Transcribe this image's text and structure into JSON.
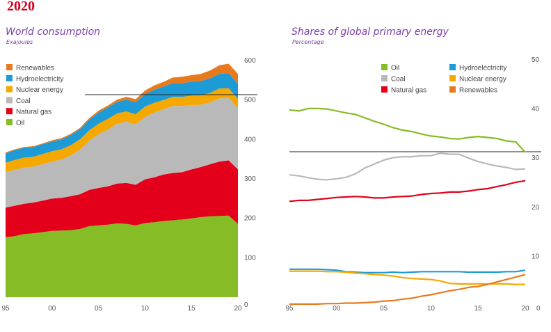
{
  "year_label": "2020",
  "colors": {
    "renewables": "#e87a1e",
    "hydro": "#1d9bd7",
    "nuclear": "#f5a800",
    "coal": "#b9b9b9",
    "gas": "#e4001b",
    "oil": "#86bc25"
  },
  "chart_data": [
    {
      "type": "area",
      "title": "World consumption",
      "subtitle": "Exajoules",
      "stacked": true,
      "ylim": [
        0,
        600
      ],
      "y_ticks": [
        "0",
        "100",
        "200",
        "300",
        "400",
        "500",
        "600"
      ],
      "x_tick_labels": [
        "95",
        "00",
        "05",
        "10",
        "15",
        "20"
      ],
      "x": [
        1995,
        1996,
        1997,
        1998,
        1999,
        2000,
        2001,
        2002,
        2003,
        2004,
        2005,
        2006,
        2007,
        2008,
        2009,
        2010,
        2011,
        2012,
        2013,
        2014,
        2015,
        2016,
        2017,
        2018,
        2019,
        2020
      ],
      "legend": [
        "Renewables",
        "Hydroelectricity",
        "Nuclear energy",
        "Coal",
        "Natural gas",
        "Oil"
      ],
      "series": [
        {
          "name": "Oil",
          "key": "oil",
          "values": [
            152,
            155,
            160,
            162,
            165,
            168,
            169,
            170,
            173,
            180,
            182,
            184,
            187,
            186,
            182,
            188,
            190,
            193,
            195,
            197,
            200,
            203,
            205,
            206,
            207,
            186
          ]
        },
        {
          "name": "Natural gas",
          "key": "gas",
          "values": [
            75,
            77,
            77,
            78,
            80,
            82,
            83,
            86,
            88,
            92,
            95,
            97,
            101,
            104,
            103,
            111,
            114,
            118,
            120,
            120,
            124,
            127,
            132,
            138,
            140,
            138
          ]
        },
        {
          "name": "Coal",
          "key": "coal",
          "values": [
            90,
            91,
            92,
            91,
            92,
            94,
            97,
            103,
            113,
            125,
            136,
            144,
            152,
            155,
            153,
            158,
            164,
            166,
            170,
            168,
            163,
            158,
            157,
            160,
            158,
            155
          ]
        },
        {
          "name": "Nuclear energy",
          "key": "nuclear",
          "values": [
            24,
            25,
            25,
            25,
            26,
            26,
            26,
            26,
            26,
            26,
            27,
            27,
            26,
            26,
            26,
            26,
            25,
            23,
            23,
            23,
            24,
            24,
            24,
            25,
            25,
            24
          ]
        },
        {
          "name": "Hydroelectricity",
          "key": "hydro",
          "values": [
            24,
            25,
            25,
            25,
            25,
            25,
            25,
            26,
            26,
            27,
            28,
            29,
            29,
            30,
            30,
            32,
            33,
            34,
            35,
            35,
            35,
            36,
            37,
            37,
            38,
            38
          ]
        },
        {
          "name": "Renewables",
          "key": "renewables",
          "values": [
            2,
            2,
            2,
            2,
            2,
            3,
            3,
            3,
            3,
            4,
            5,
            5,
            6,
            7,
            8,
            9,
            11,
            12,
            14,
            16,
            17,
            18,
            20,
            22,
            24,
            25
          ]
        }
      ]
    },
    {
      "type": "line",
      "title": "Shares of global primary energy",
      "subtitle": "Percentage",
      "ylim": [
        0,
        50
      ],
      "y_ticks": [
        "0",
        "10",
        "20",
        "30",
        "40",
        "50"
      ],
      "x_tick_labels": [
        "95",
        "00",
        "05",
        "10",
        "15",
        "20"
      ],
      "x": [
        1995,
        1996,
        1997,
        1998,
        1999,
        2000,
        2001,
        2002,
        2003,
        2004,
        2005,
        2006,
        2007,
        2008,
        2009,
        2010,
        2011,
        2012,
        2013,
        2014,
        2015,
        2016,
        2017,
        2018,
        2019,
        2020
      ],
      "legend": [
        "Oil",
        "Coal",
        "Natural gas",
        "Hydroelectricity",
        "Nuclear energy",
        "Renewables"
      ],
      "series": [
        {
          "name": "Oil",
          "key": "oil",
          "values": [
            39.8,
            39.6,
            40.1,
            40.1,
            40.0,
            39.6,
            39.2,
            38.9,
            38.2,
            37.5,
            36.9,
            36.2,
            35.7,
            35.4,
            34.9,
            34.5,
            34.3,
            34.0,
            33.9,
            34.2,
            34.4,
            34.2,
            34.0,
            33.5,
            33.3,
            31.2
          ]
        },
        {
          "name": "Coal",
          "key": "coal",
          "values": [
            26.6,
            26.4,
            26.0,
            25.7,
            25.6,
            25.8,
            26.1,
            26.8,
            28.0,
            28.8,
            29.6,
            30.1,
            30.3,
            30.3,
            30.5,
            30.5,
            31.0,
            30.8,
            30.8,
            30.0,
            29.3,
            28.8,
            28.4,
            28.1,
            27.7,
            27.8
          ]
        },
        {
          "name": "Natural gas",
          "key": "gas",
          "values": [
            21.2,
            21.4,
            21.4,
            21.6,
            21.8,
            22.0,
            22.1,
            22.2,
            22.1,
            21.9,
            21.9,
            22.1,
            22.2,
            22.3,
            22.6,
            22.8,
            22.9,
            23.1,
            23.1,
            23.3,
            23.6,
            23.8,
            24.2,
            24.6,
            25.1,
            25.4
          ]
        },
        {
          "name": "Hydroelectricity",
          "key": "hydro",
          "values": [
            7.4,
            7.4,
            7.4,
            7.4,
            7.3,
            7.2,
            6.9,
            6.8,
            6.7,
            6.7,
            6.7,
            6.8,
            6.7,
            6.8,
            6.9,
            6.9,
            6.9,
            6.9,
            6.9,
            6.8,
            6.8,
            6.8,
            6.8,
            6.9,
            6.9,
            7.2
          ]
        },
        {
          "name": "Nuclear energy",
          "key": "nuclear",
          "values": [
            7.0,
            7.0,
            7.0,
            7.0,
            6.9,
            6.9,
            6.8,
            6.6,
            6.5,
            6.3,
            6.2,
            6.0,
            5.7,
            5.5,
            5.4,
            5.3,
            5.0,
            4.5,
            4.4,
            4.4,
            4.4,
            4.4,
            4.4,
            4.4,
            4.3,
            4.3
          ]
        },
        {
          "name": "Renewables",
          "key": "renewables",
          "values": [
            0.3,
            0.3,
            0.3,
            0.3,
            0.4,
            0.4,
            0.5,
            0.5,
            0.6,
            0.7,
            0.9,
            1.0,
            1.3,
            1.5,
            1.9,
            2.2,
            2.6,
            3.0,
            3.3,
            3.7,
            3.9,
            4.3,
            4.8,
            5.3,
            5.8,
            6.3
          ]
        }
      ]
    }
  ]
}
